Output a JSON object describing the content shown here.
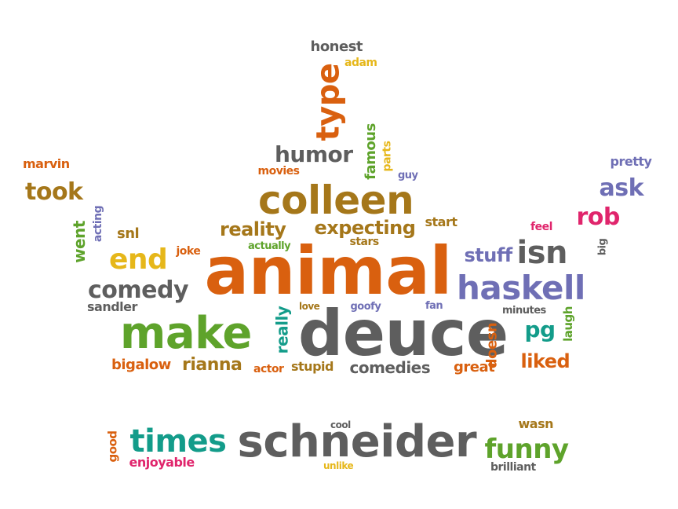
{
  "words": [
    {
      "text": "animal",
      "color": "#d9600f"
    },
    {
      "text": "deuce",
      "color": "#5e5e5e"
    },
    {
      "text": "schneider",
      "color": "#5e5e5e"
    },
    {
      "text": "make",
      "color": "#5ea32b"
    },
    {
      "text": "colleen",
      "color": "#a5771a"
    },
    {
      "text": "haskell",
      "color": "#6f6fb5"
    },
    {
      "text": "times",
      "color": "#139c8a"
    },
    {
      "text": "isn",
      "color": "#5e5e5e"
    },
    {
      "text": "type",
      "color": "#d9600f"
    },
    {
      "text": "end",
      "color": "#e6b71a"
    },
    {
      "text": "comedy",
      "color": "#5e5e5e"
    },
    {
      "text": "funny",
      "color": "#5ea32b"
    },
    {
      "text": "humor",
      "color": "#5e5e5e"
    },
    {
      "text": "took",
      "color": "#a5771a"
    },
    {
      "text": "rob",
      "color": "#e0256c"
    },
    {
      "text": "ask",
      "color": "#6f6fb5"
    },
    {
      "text": "reality",
      "color": "#a5771a"
    },
    {
      "text": "expecting",
      "color": "#a5771a"
    },
    {
      "text": "stuff",
      "color": "#6f6fb5"
    },
    {
      "text": "pg",
      "color": "#139c8a"
    },
    {
      "text": "liked",
      "color": "#d9600f"
    },
    {
      "text": "rianna",
      "color": "#a5771a"
    },
    {
      "text": "bigalow",
      "color": "#d9600f"
    },
    {
      "text": "comedies",
      "color": "#5e5e5e"
    },
    {
      "text": "great",
      "color": "#d9600f"
    },
    {
      "text": "stupid",
      "color": "#a5771a"
    },
    {
      "text": "actor",
      "color": "#d9600f"
    },
    {
      "text": "really",
      "color": "#139c8a"
    },
    {
      "text": "went",
      "color": "#5ea32b"
    },
    {
      "text": "acting",
      "color": "#6f6fb5"
    },
    {
      "text": "snl",
      "color": "#a5771a"
    },
    {
      "text": "joke",
      "color": "#d9600f"
    },
    {
      "text": "sandler",
      "color": "#5e5e5e"
    },
    {
      "text": "marvin",
      "color": "#d9600f"
    },
    {
      "text": "movies",
      "color": "#d9600f"
    },
    {
      "text": "famous",
      "color": "#5ea32b"
    },
    {
      "text": "parts",
      "color": "#e6b71a"
    },
    {
      "text": "guy",
      "color": "#6f6fb5"
    },
    {
      "text": "start",
      "color": "#a5771a"
    },
    {
      "text": "stars",
      "color": "#a5771a"
    },
    {
      "text": "actually",
      "color": "#5ea32b"
    },
    {
      "text": "love",
      "color": "#a5771a"
    },
    {
      "text": "goofy",
      "color": "#6f6fb5"
    },
    {
      "text": "fan",
      "color": "#6f6fb5"
    },
    {
      "text": "minutes",
      "color": "#5e5e5e"
    },
    {
      "text": "doesn",
      "color": "#d9600f"
    },
    {
      "text": "laugh",
      "color": "#5ea32b"
    },
    {
      "text": "feel",
      "color": "#e0256c"
    },
    {
      "text": "big",
      "color": "#5e5e5e"
    },
    {
      "text": "pretty",
      "color": "#6f6fb5"
    },
    {
      "text": "honest",
      "color": "#5e5e5e"
    },
    {
      "text": "adam",
      "color": "#e6b71a"
    },
    {
      "text": "good",
      "color": "#d9600f"
    },
    {
      "text": "enjoyable",
      "color": "#e0256c"
    },
    {
      "text": "cool",
      "color": "#5e5e5e"
    },
    {
      "text": "unlike",
      "color": "#e6b71a"
    },
    {
      "text": "wasn",
      "color": "#a5771a"
    },
    {
      "text": "brilliant",
      "color": "#5e5e5e"
    }
  ]
}
